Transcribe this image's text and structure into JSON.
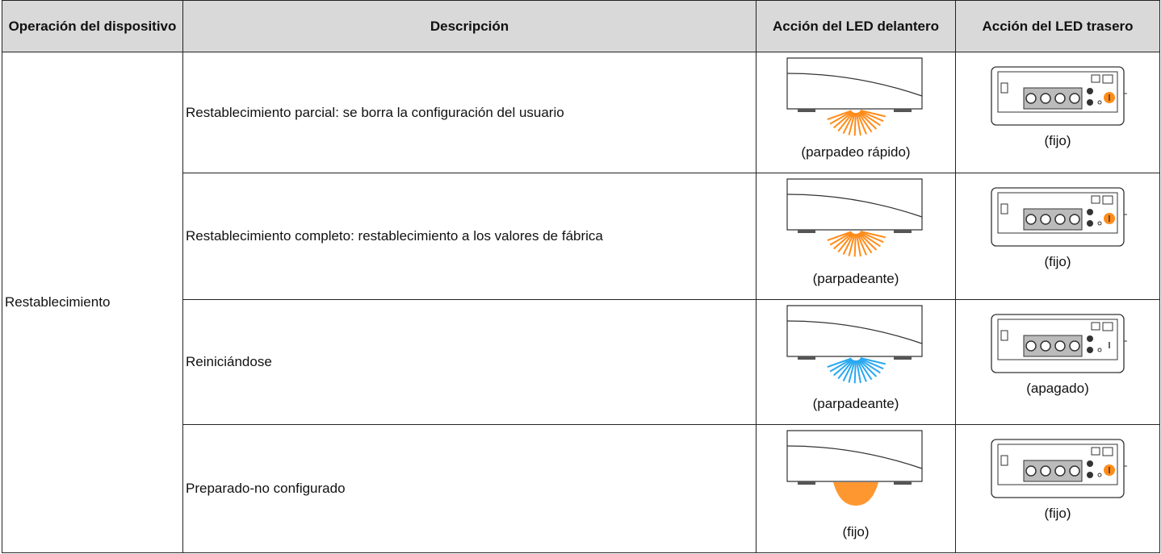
{
  "table": {
    "header": [
      "Operación del dispositivo",
      "Descripción",
      "Acción del LED delantero",
      "Acción del LED trasero"
    ],
    "operation": "Restablecimiento",
    "rows": [
      {
        "description": "Restablecimiento parcial: se borra la configuración del usuario",
        "front": "(parpadeo rápido)",
        "rear": "(fijo)"
      },
      {
        "description": "Restablecimiento completo: restablecimiento a los valores de fábrica",
        "front": "(parpadeante)",
        "rear": "(fijo)"
      },
      {
        "description": "Reiniciándose",
        "front": "(parpadeante)",
        "rear": "(apagado)"
      },
      {
        "description": "Preparado-no configurado",
        "front": "(fijo)",
        "rear": "(fijo)"
      }
    ]
  }
}
